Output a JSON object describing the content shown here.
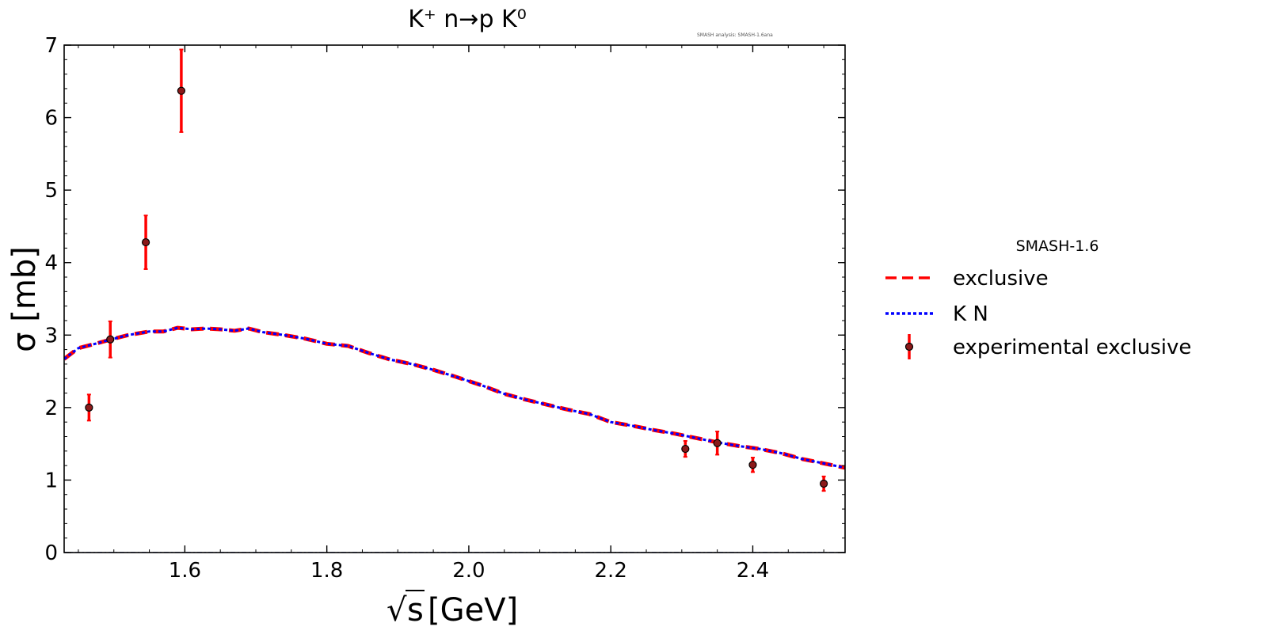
{
  "chart_data": {
    "type": "line",
    "title": "K⁺ n→p K⁰",
    "annotation": "SMASH analysis: SMASH-1.6ana",
    "xlabel": "√s [GeV]",
    "xlabel_sqrt": "√",
    "xlabel_s": "s",
    "xlabel_unit": "[GeV]",
    "ylabel": "σ [mb]",
    "xlim": [
      1.43,
      2.53
    ],
    "ylim": [
      0,
      7
    ],
    "xticks": [
      1.6,
      1.8,
      2.0,
      2.2,
      2.4
    ],
    "xtick_labels": [
      "1.6",
      "1.8",
      "2.0",
      "2.2",
      "2.4"
    ],
    "yticks": [
      0,
      1,
      2,
      3,
      4,
      5,
      6,
      7
    ],
    "ytick_labels": [
      "0",
      "1",
      "2",
      "3",
      "4",
      "5",
      "6",
      "7"
    ],
    "legend": {
      "title": "SMASH-1.6",
      "position": "right-outside",
      "entries": [
        "exclusive",
        "K N",
        "experimental exclusive"
      ]
    },
    "colors": {
      "exclusive": "#ff0000",
      "kn": "#0000ff",
      "experimental": "#ff0000",
      "marker_fill": "#8b1a1a"
    },
    "series": [
      {
        "name": "exclusive",
        "style": "dashed",
        "x": [
          1.43,
          1.45,
          1.47,
          1.5,
          1.52,
          1.55,
          1.57,
          1.59,
          1.6,
          1.61,
          1.63,
          1.65,
          1.67,
          1.69,
          1.71,
          1.74,
          1.77,
          1.8,
          1.83,
          1.86,
          1.89,
          1.92,
          1.95,
          1.98,
          2.02,
          2.05,
          2.08,
          2.11,
          2.14,
          2.17,
          2.2,
          2.23,
          2.26,
          2.29,
          2.32,
          2.35,
          2.38,
          2.41,
          2.44,
          2.47,
          2.5,
          2.53
        ],
        "y": [
          2.67,
          2.82,
          2.87,
          2.95,
          3.0,
          3.05,
          3.05,
          3.1,
          3.09,
          3.08,
          3.09,
          3.08,
          3.06,
          3.09,
          3.04,
          3.0,
          2.95,
          2.88,
          2.85,
          2.75,
          2.66,
          2.6,
          2.52,
          2.43,
          2.3,
          2.19,
          2.11,
          2.04,
          1.97,
          1.91,
          1.8,
          1.75,
          1.69,
          1.64,
          1.58,
          1.52,
          1.47,
          1.43,
          1.37,
          1.29,
          1.23,
          1.17
        ]
      },
      {
        "name": "K N",
        "style": "dotted",
        "x": [
          1.43,
          1.45,
          1.47,
          1.5,
          1.52,
          1.55,
          1.57,
          1.59,
          1.6,
          1.61,
          1.63,
          1.65,
          1.67,
          1.69,
          1.71,
          1.74,
          1.77,
          1.8,
          1.83,
          1.86,
          1.89,
          1.92,
          1.95,
          1.98,
          2.02,
          2.05,
          2.08,
          2.11,
          2.14,
          2.17,
          2.2,
          2.23,
          2.26,
          2.29,
          2.32,
          2.35,
          2.38,
          2.41,
          2.44,
          2.47,
          2.5,
          2.53
        ],
        "y": [
          2.67,
          2.82,
          2.87,
          2.95,
          3.0,
          3.05,
          3.05,
          3.1,
          3.09,
          3.08,
          3.09,
          3.08,
          3.06,
          3.09,
          3.04,
          3.0,
          2.95,
          2.88,
          2.85,
          2.75,
          2.66,
          2.6,
          2.52,
          2.43,
          2.3,
          2.19,
          2.11,
          2.04,
          1.97,
          1.91,
          1.8,
          1.75,
          1.69,
          1.64,
          1.58,
          1.52,
          1.47,
          1.43,
          1.37,
          1.29,
          1.23,
          1.17
        ]
      },
      {
        "name": "zero-line",
        "style": "dash-dot",
        "x": [
          1.43,
          2.53
        ],
        "y": [
          0,
          0
        ]
      }
    ],
    "experimental": {
      "name": "experimental exclusive",
      "x": [
        1.465,
        1.495,
        1.545,
        1.595,
        2.305,
        2.35,
        2.4,
        2.5
      ],
      "y": [
        2.0,
        2.94,
        4.28,
        6.37,
        1.43,
        1.51,
        1.21,
        0.95
      ],
      "yerr": [
        0.18,
        0.25,
        0.37,
        0.57,
        0.11,
        0.16,
        0.1,
        0.1
      ]
    }
  }
}
